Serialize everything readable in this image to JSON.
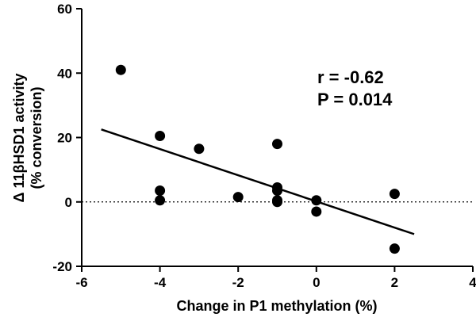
{
  "chart_data": {
    "type": "scatter",
    "xlabel": "Change in P1 methylation (%)",
    "ylabel_line1": "Δ 11βHSD1 activity",
    "ylabel_line2": "(% conversion)",
    "xlim": [
      -6,
      4
    ],
    "ylim": [
      -20,
      60
    ],
    "x_ticks": [
      -6,
      -4,
      -2,
      0,
      2,
      4
    ],
    "y_ticks": [
      -20,
      0,
      20,
      40,
      60
    ],
    "points": [
      {
        "x": -5,
        "y": 41
      },
      {
        "x": -4,
        "y": 20.5
      },
      {
        "x": -4,
        "y": 3.5
      },
      {
        "x": -4,
        "y": 0.5
      },
      {
        "x": -3,
        "y": 16.5
      },
      {
        "x": -2,
        "y": 1.5
      },
      {
        "x": -1,
        "y": 18
      },
      {
        "x": -1,
        "y": 4.5
      },
      {
        "x": -1,
        "y": 3.5
      },
      {
        "x": -1,
        "y": 0.5
      },
      {
        "x": -1,
        "y": 0
      },
      {
        "x": 0,
        "y": 0.5
      },
      {
        "x": 0,
        "y": -3
      },
      {
        "x": 2,
        "y": 2.5
      },
      {
        "x": 2,
        "y": -14.5
      }
    ],
    "regression_line": {
      "x": [
        -5.5,
        2.5
      ],
      "y": [
        22.5,
        -10
      ]
    },
    "reference_line_y": 0,
    "annotations": [
      "r = -0.62",
      "P = 0.014"
    ]
  }
}
